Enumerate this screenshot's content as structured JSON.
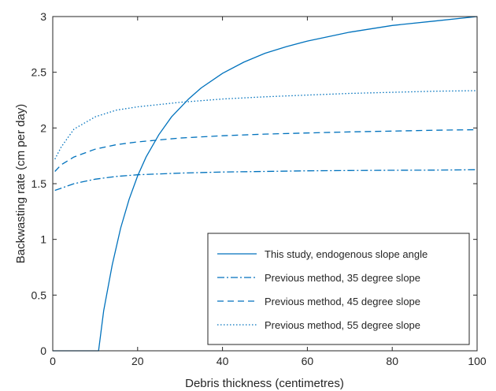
{
  "colors": {
    "series": "#0072bd",
    "axis": "#262626",
    "legend_border": "#262626"
  },
  "chart_data": {
    "type": "line",
    "title": "",
    "xlabel": "Debris thickness (centimetres)",
    "ylabel": "Backwasting rate (cm per day)",
    "xlim": [
      0,
      100
    ],
    "ylim": [
      0,
      3
    ],
    "xticks": [
      0,
      20,
      40,
      60,
      80,
      100
    ],
    "yticks": [
      0,
      0.5,
      1,
      1.5,
      2,
      2.5,
      3
    ],
    "xtick_labels": [
      "0",
      "20",
      "40",
      "60",
      "80",
      "100"
    ],
    "ytick_labels": [
      "0",
      "0.5",
      "1",
      "1.5",
      "2",
      "2.5",
      "3"
    ],
    "grid": false,
    "legend_position": "bottom-right",
    "series": [
      {
        "name": "This study, endogenous slope angle",
        "line_style": "solid",
        "x": [
          0,
          5,
          10.8,
          12,
          14,
          16,
          18,
          20,
          22,
          25,
          28,
          30,
          32,
          35,
          40,
          45,
          50,
          55,
          60,
          70,
          80,
          90,
          100
        ],
        "y": [
          0,
          0,
          0,
          0.36,
          0.77,
          1.1,
          1.36,
          1.57,
          1.74,
          1.94,
          2.1,
          2.18,
          2.26,
          2.36,
          2.49,
          2.59,
          2.67,
          2.73,
          2.78,
          2.86,
          2.92,
          2.96,
          3.0
        ]
      },
      {
        "name": "Previous method, 35 degree slope",
        "line_style": "dashdot",
        "x": [
          0.5,
          2,
          5,
          10,
          15,
          20,
          30,
          40,
          50,
          60,
          70,
          80,
          90,
          100
        ],
        "y": [
          1.44,
          1.46,
          1.5,
          1.54,
          1.565,
          1.58,
          1.595,
          1.605,
          1.61,
          1.615,
          1.618,
          1.62,
          1.622,
          1.625
        ]
      },
      {
        "name": "Previous method, 45 degree slope",
        "line_style": "dashed",
        "x": [
          0.5,
          2,
          5,
          10,
          15,
          20,
          30,
          40,
          50,
          60,
          70,
          80,
          90,
          100
        ],
        "y": [
          1.61,
          1.67,
          1.74,
          1.81,
          1.85,
          1.875,
          1.91,
          1.93,
          1.945,
          1.955,
          1.965,
          1.972,
          1.98,
          1.985
        ]
      },
      {
        "name": "Previous method, 55 degree slope",
        "line_style": "dotted",
        "x": [
          0.5,
          2,
          5,
          10,
          15,
          20,
          30,
          40,
          50,
          60,
          70,
          80,
          90,
          100
        ],
        "y": [
          1.72,
          1.83,
          1.99,
          2.1,
          2.16,
          2.19,
          2.23,
          2.26,
          2.28,
          2.295,
          2.31,
          2.32,
          2.33,
          2.335
        ]
      }
    ]
  }
}
